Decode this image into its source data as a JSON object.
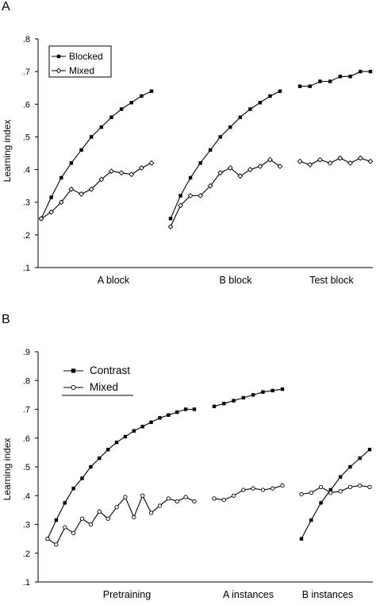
{
  "chart_data": [
    {
      "type": "line",
      "panel_label": "A",
      "ylabel": "Learning index",
      "ylim": [
        0.1,
        0.8
      ],
      "yticks": [
        ".1",
        ".2",
        ".3",
        ".4",
        ".5",
        ".6",
        ".7",
        ".8"
      ],
      "segments": [
        {
          "label": "A block",
          "x": [
            1,
            2,
            3,
            4,
            5,
            6,
            7,
            8,
            9,
            10,
            11,
            12
          ]
        },
        {
          "label": "B block",
          "x": [
            1,
            2,
            3,
            4,
            5,
            6,
            7,
            8,
            9,
            10,
            11,
            12
          ]
        },
        {
          "label": "Test block",
          "x": [
            1,
            2,
            3,
            4,
            5,
            6,
            7,
            8
          ]
        }
      ],
      "legend": {
        "position": "top-left",
        "box": true
      },
      "series": [
        {
          "name": "Blocked",
          "marker": "square",
          "values": [
            [
              0.25,
              0.315,
              0.375,
              0.42,
              0.46,
              0.5,
              0.53,
              0.56,
              0.585,
              0.605,
              0.625,
              0.64
            ],
            [
              0.25,
              0.32,
              0.375,
              0.42,
              0.46,
              0.5,
              0.53,
              0.56,
              0.585,
              0.605,
              0.625,
              0.64
            ],
            [
              0.655,
              0.655,
              0.67,
              0.67,
              0.685,
              0.685,
              0.7,
              0.7
            ]
          ]
        },
        {
          "name": "Mixed",
          "marker": "diamond",
          "values": [
            [
              0.25,
              0.27,
              0.3,
              0.34,
              0.325,
              0.34,
              0.37,
              0.395,
              0.39,
              0.385,
              0.405,
              0.42
            ],
            [
              0.225,
              0.29,
              0.32,
              0.32,
              0.35,
              0.39,
              0.405,
              0.38,
              0.4,
              0.41,
              0.43,
              0.41
            ],
            [
              0.425,
              0.415,
              0.43,
              0.42,
              0.435,
              0.42,
              0.435,
              0.425
            ]
          ]
        }
      ]
    },
    {
      "type": "line",
      "panel_label": "B",
      "ylabel": "Learning index",
      "ylim": [
        0.1,
        0.9
      ],
      "yticks": [
        ".1",
        ".2",
        ".3",
        ".4",
        ".5",
        ".6",
        ".7",
        ".8",
        ".9"
      ],
      "segments": [
        {
          "label": "Pretraining",
          "x": [
            1,
            2,
            3,
            4,
            5,
            6,
            7,
            8,
            9,
            10,
            11,
            12,
            13,
            14,
            15,
            16,
            17,
            18
          ]
        },
        {
          "label": "A instances",
          "x": [
            1,
            2,
            3,
            4,
            5,
            6,
            7,
            8
          ]
        },
        {
          "label": "B instances",
          "x": [
            1,
            2,
            3,
            4,
            5,
            6,
            7,
            8
          ]
        }
      ],
      "legend": {
        "position": "top-left",
        "box": false
      },
      "series": [
        {
          "name": "Contrast",
          "marker": "square",
          "values": [
            [
              0.25,
              0.315,
              0.375,
              0.425,
              0.46,
              0.5,
              0.53,
              0.56,
              0.585,
              0.605,
              0.625,
              0.64,
              0.655,
              0.67,
              0.68,
              0.69,
              0.7,
              0.7
            ],
            [
              0.71,
              0.72,
              0.73,
              0.74,
              0.75,
              0.76,
              0.765,
              0.77
            ],
            [
              0.25,
              0.315,
              0.375,
              0.42,
              0.465,
              0.5,
              0.53,
              0.56
            ]
          ]
        },
        {
          "name": "Mixed",
          "marker": "circle",
          "values": [
            [
              0.25,
              0.23,
              0.29,
              0.27,
              0.32,
              0.3,
              0.345,
              0.32,
              0.36,
              0.395,
              0.325,
              0.4,
              0.34,
              0.365,
              0.39,
              0.38,
              0.395,
              0.38
            ],
            [
              0.39,
              0.385,
              0.4,
              0.42,
              0.425,
              0.42,
              0.425,
              0.435
            ],
            [
              0.405,
              0.41,
              0.43,
              0.41,
              0.415,
              0.43,
              0.435,
              0.43
            ]
          ]
        }
      ]
    }
  ]
}
